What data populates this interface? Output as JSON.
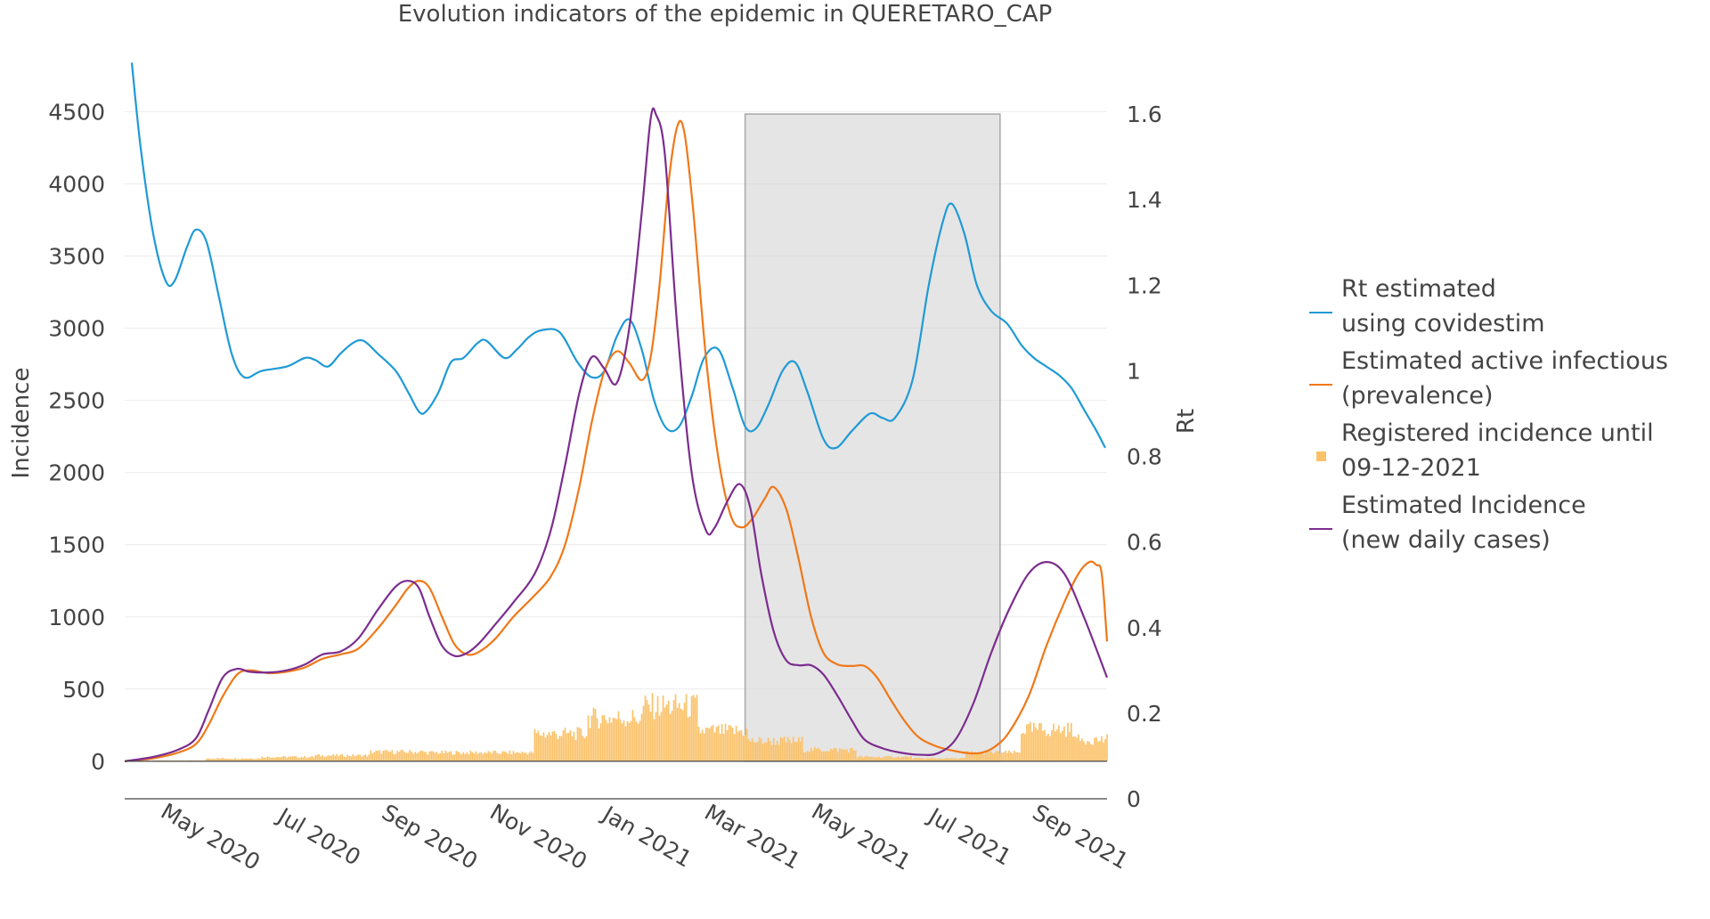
{
  "chart_data": {
    "type": "line",
    "title": "Evolution indicators of the epidemic in QUERETARO_CAP",
    "xlabel": "",
    "ylabel": "Incidence",
    "y2label": "Rt",
    "x_range": [
      "2020-03-16",
      "2021-09-18"
    ],
    "ylim": [
      -260,
      4780
    ],
    "y2lim": [
      0,
      1.7
    ],
    "y_ticks": [
      0,
      500,
      1000,
      1500,
      2000,
      2500,
      3000,
      3500,
      4000,
      4500
    ],
    "y2_ticks": [
      0,
      0.2,
      0.4,
      0.6,
      0.8,
      1,
      1.2,
      1.4,
      1.6
    ],
    "y2_tick_labels": [
      "0",
      "0.2",
      "0.4",
      "0.6",
      "0.8",
      "1",
      "1.2",
      "1.4",
      "1.6"
    ],
    "x_ticks": [
      "2020-05-01",
      "2020-07-01",
      "2020-09-01",
      "2020-11-01",
      "2021-01-01",
      "2021-03-01",
      "2021-05-01",
      "2021-07-01",
      "2021-09-01"
    ],
    "x_tick_labels": [
      "May 2020",
      "Jul 2020",
      "Sep 2020",
      "Nov 2020",
      "Jan 2021",
      "Mar 2021",
      "May 2021",
      "Jul 2021",
      "Sep 2021"
    ],
    "grid": true,
    "legend_position": "right",
    "shaded_region": {
      "x_start": "2021-02-27",
      "x_end": "2021-07-20",
      "y2_top": 1.6,
      "color": "#d3d3d3"
    },
    "series": [
      {
        "name": "Rt estimated\nusing covidestim",
        "type": "line",
        "axis": "y2",
        "color": "#1f9ad6",
        "points": [
          [
            "2020-03-20",
            1.72
          ],
          [
            "2020-03-25",
            1.52
          ],
          [
            "2020-04-01",
            1.32
          ],
          [
            "2020-04-08",
            1.21
          ],
          [
            "2020-04-13",
            1.21
          ],
          [
            "2020-04-20",
            1.29
          ],
          [
            "2020-04-25",
            1.33
          ],
          [
            "2020-05-01",
            1.3
          ],
          [
            "2020-05-08",
            1.17
          ],
          [
            "2020-05-15",
            1.04
          ],
          [
            "2020-05-22",
            0.985
          ],
          [
            "2020-06-01",
            1.0
          ],
          [
            "2020-06-15",
            1.01
          ],
          [
            "2020-06-25",
            1.03
          ],
          [
            "2020-07-01",
            1.025
          ],
          [
            "2020-07-08",
            1.01
          ],
          [
            "2020-07-15",
            1.04
          ],
          [
            "2020-07-22",
            1.065
          ],
          [
            "2020-07-28",
            1.07
          ],
          [
            "2020-08-05",
            1.04
          ],
          [
            "2020-08-15",
            1.0
          ],
          [
            "2020-08-22",
            0.95
          ],
          [
            "2020-08-28",
            0.905
          ],
          [
            "2020-09-01",
            0.905
          ],
          [
            "2020-09-08",
            0.95
          ],
          [
            "2020-09-15",
            1.02
          ],
          [
            "2020-09-22",
            1.03
          ],
          [
            "2020-09-30",
            1.065
          ],
          [
            "2020-10-05",
            1.07
          ],
          [
            "2020-10-15",
            1.03
          ],
          [
            "2020-10-22",
            1.05
          ],
          [
            "2020-10-29",
            1.08
          ],
          [
            "2020-11-05",
            1.095
          ],
          [
            "2020-11-15",
            1.09
          ],
          [
            "2020-11-25",
            1.02
          ],
          [
            "2020-12-03",
            0.985
          ],
          [
            "2020-12-10",
            1.0
          ],
          [
            "2020-12-17",
            1.08
          ],
          [
            "2020-12-24",
            1.12
          ],
          [
            "2020-12-31",
            1.05
          ],
          [
            "2021-01-07",
            0.93
          ],
          [
            "2021-01-14",
            0.865
          ],
          [
            "2021-01-21",
            0.87
          ],
          [
            "2021-01-28",
            0.94
          ],
          [
            "2021-02-04",
            1.03
          ],
          [
            "2021-02-12",
            1.05
          ],
          [
            "2021-02-20",
            0.96
          ],
          [
            "2021-02-27",
            0.87
          ],
          [
            "2021-03-05",
            0.865
          ],
          [
            "2021-03-12",
            0.92
          ],
          [
            "2021-03-20",
            1.0
          ],
          [
            "2021-03-27",
            1.02
          ],
          [
            "2021-04-03",
            0.95
          ],
          [
            "2021-04-12",
            0.84
          ],
          [
            "2021-04-19",
            0.82
          ],
          [
            "2021-04-28",
            0.86
          ],
          [
            "2021-05-08",
            0.9
          ],
          [
            "2021-05-15",
            0.89
          ],
          [
            "2021-05-22",
            0.89
          ],
          [
            "2021-06-01",
            0.98
          ],
          [
            "2021-06-10",
            1.2
          ],
          [
            "2021-06-18",
            1.35
          ],
          [
            "2021-06-23",
            1.39
          ],
          [
            "2021-06-30",
            1.32
          ],
          [
            "2021-07-07",
            1.2
          ],
          [
            "2021-07-15",
            1.14
          ],
          [
            "2021-07-24",
            1.11
          ],
          [
            "2021-08-01",
            1.06
          ],
          [
            "2021-08-08",
            1.03
          ],
          [
            "2021-08-15",
            1.01
          ],
          [
            "2021-08-22",
            0.99
          ],
          [
            "2021-08-29",
            0.96
          ],
          [
            "2021-09-05",
            0.91
          ],
          [
            "2021-09-12",
            0.86
          ],
          [
            "2021-09-17",
            0.82
          ]
        ]
      },
      {
        "name": "Estimated active infectious\n(prevalence)",
        "type": "line",
        "axis": "y",
        "color": "#f07818",
        "points": [
          [
            "2020-03-16",
            0
          ],
          [
            "2020-04-01",
            20
          ],
          [
            "2020-04-15",
            60
          ],
          [
            "2020-04-25",
            120
          ],
          [
            "2020-05-02",
            250
          ],
          [
            "2020-05-10",
            450
          ],
          [
            "2020-05-18",
            600
          ],
          [
            "2020-05-25",
            630
          ],
          [
            "2020-06-05",
            610
          ],
          [
            "2020-06-15",
            620
          ],
          [
            "2020-06-25",
            650
          ],
          [
            "2020-07-05",
            710
          ],
          [
            "2020-07-15",
            740
          ],
          [
            "2020-07-25",
            780
          ],
          [
            "2020-08-05",
            920
          ],
          [
            "2020-08-15",
            1080
          ],
          [
            "2020-08-22",
            1200
          ],
          [
            "2020-08-28",
            1250
          ],
          [
            "2020-09-03",
            1200
          ],
          [
            "2020-09-10",
            1000
          ],
          [
            "2020-09-17",
            810
          ],
          [
            "2020-09-24",
            740
          ],
          [
            "2020-10-01",
            760
          ],
          [
            "2020-10-10",
            850
          ],
          [
            "2020-10-20",
            1000
          ],
          [
            "2020-11-01",
            1150
          ],
          [
            "2020-11-10",
            1280
          ],
          [
            "2020-11-18",
            1500
          ],
          [
            "2020-11-26",
            1900
          ],
          [
            "2020-12-03",
            2350
          ],
          [
            "2020-12-10",
            2700
          ],
          [
            "2020-12-17",
            2840
          ],
          [
            "2020-12-24",
            2760
          ],
          [
            "2020-12-31",
            2640
          ],
          [
            "2021-01-05",
            2800
          ],
          [
            "2021-01-10",
            3300
          ],
          [
            "2021-01-15",
            4000
          ],
          [
            "2021-01-20",
            4400
          ],
          [
            "2021-01-24",
            4350
          ],
          [
            "2021-01-29",
            3800
          ],
          [
            "2021-02-05",
            2800
          ],
          [
            "2021-02-12",
            2100
          ],
          [
            "2021-02-19",
            1700
          ],
          [
            "2021-02-25",
            1620
          ],
          [
            "2021-03-03",
            1680
          ],
          [
            "2021-03-10",
            1820
          ],
          [
            "2021-03-15",
            1900
          ],
          [
            "2021-03-22",
            1750
          ],
          [
            "2021-03-29",
            1400
          ],
          [
            "2021-04-05",
            1000
          ],
          [
            "2021-04-12",
            750
          ],
          [
            "2021-04-20",
            670
          ],
          [
            "2021-04-28",
            660
          ],
          [
            "2021-05-05",
            660
          ],
          [
            "2021-05-12",
            580
          ],
          [
            "2021-05-20",
            420
          ],
          [
            "2021-05-28",
            270
          ],
          [
            "2021-06-05",
            160
          ],
          [
            "2021-06-15",
            100
          ],
          [
            "2021-06-25",
            70
          ],
          [
            "2021-07-03",
            55
          ],
          [
            "2021-07-10",
            60
          ],
          [
            "2021-07-17",
            100
          ],
          [
            "2021-07-25",
            200
          ],
          [
            "2021-08-05",
            450
          ],
          [
            "2021-08-15",
            800
          ],
          [
            "2021-08-25",
            1100
          ],
          [
            "2021-09-02",
            1300
          ],
          [
            "2021-09-08",
            1380
          ],
          [
            "2021-09-12",
            1360
          ],
          [
            "2021-09-15",
            1300
          ],
          [
            "2021-09-18",
            830
          ]
        ]
      },
      {
        "name": "Registered incidence until\n09-12-2021",
        "type": "bar",
        "axis": "y",
        "color": "#fbc26a",
        "monthly_level": [
          [
            "2020-03",
            2
          ],
          [
            "2020-04",
            5
          ],
          [
            "2020-05",
            20
          ],
          [
            "2020-06",
            30
          ],
          [
            "2020-07",
            40
          ],
          [
            "2020-08",
            65
          ],
          [
            "2020-09",
            60
          ],
          [
            "2020-10",
            60
          ],
          [
            "2020-11",
            190
          ],
          [
            "2020-12",
            300
          ],
          [
            "2021-01",
            380
          ],
          [
            "2021-02",
            210
          ],
          [
            "2021-03",
            140
          ],
          [
            "2021-04",
            80
          ],
          [
            "2021-05",
            30
          ],
          [
            "2021-06",
            20
          ],
          [
            "2021-07",
            60
          ],
          [
            "2021-08",
            220
          ],
          [
            "2021-09",
            150
          ]
        ]
      },
      {
        "name": "Estimated Incidence\n(new daily cases)",
        "type": "line",
        "axis": "y",
        "color": "#7b2d8e",
        "points": [
          [
            "2020-03-16",
            0
          ],
          [
            "2020-04-01",
            30
          ],
          [
            "2020-04-15",
            80
          ],
          [
            "2020-04-25",
            160
          ],
          [
            "2020-05-02",
            350
          ],
          [
            "2020-05-10",
            580
          ],
          [
            "2020-05-18",
            640
          ],
          [
            "2020-05-25",
            620
          ],
          [
            "2020-06-05",
            615
          ],
          [
            "2020-06-15",
            630
          ],
          [
            "2020-06-25",
            670
          ],
          [
            "2020-07-05",
            740
          ],
          [
            "2020-07-15",
            760
          ],
          [
            "2020-07-25",
            850
          ],
          [
            "2020-08-05",
            1050
          ],
          [
            "2020-08-15",
            1210
          ],
          [
            "2020-08-22",
            1250
          ],
          [
            "2020-08-28",
            1200
          ],
          [
            "2020-09-03",
            1000
          ],
          [
            "2020-09-10",
            800
          ],
          [
            "2020-09-17",
            730
          ],
          [
            "2020-09-24",
            750
          ],
          [
            "2020-10-01",
            820
          ],
          [
            "2020-10-10",
            950
          ],
          [
            "2020-10-20",
            1100
          ],
          [
            "2020-11-01",
            1300
          ],
          [
            "2020-11-10",
            1600
          ],
          [
            "2020-11-18",
            2050
          ],
          [
            "2020-11-26",
            2550
          ],
          [
            "2020-12-03",
            2800
          ],
          [
            "2020-12-10",
            2720
          ],
          [
            "2020-12-17",
            2620
          ],
          [
            "2020-12-24",
            3000
          ],
          [
            "2020-12-31",
            3800
          ],
          [
            "2021-01-05",
            4450
          ],
          [
            "2021-01-08",
            4480
          ],
          [
            "2021-01-13",
            4200
          ],
          [
            "2021-01-20",
            3000
          ],
          [
            "2021-01-28",
            2000
          ],
          [
            "2021-02-05",
            1600
          ],
          [
            "2021-02-10",
            1620
          ],
          [
            "2021-02-17",
            1800
          ],
          [
            "2021-02-24",
            1920
          ],
          [
            "2021-03-02",
            1750
          ],
          [
            "2021-03-08",
            1300
          ],
          [
            "2021-03-15",
            900
          ],
          [
            "2021-03-22",
            700
          ],
          [
            "2021-03-29",
            665
          ],
          [
            "2021-04-05",
            665
          ],
          [
            "2021-04-12",
            600
          ],
          [
            "2021-04-20",
            450
          ],
          [
            "2021-04-28",
            280
          ],
          [
            "2021-05-05",
            150
          ],
          [
            "2021-05-15",
            90
          ],
          [
            "2021-05-25",
            60
          ],
          [
            "2021-06-05",
            45
          ],
          [
            "2021-06-15",
            55
          ],
          [
            "2021-06-25",
            150
          ],
          [
            "2021-07-05",
            400
          ],
          [
            "2021-07-15",
            750
          ],
          [
            "2021-07-25",
            1050
          ],
          [
            "2021-08-05",
            1300
          ],
          [
            "2021-08-15",
            1380
          ],
          [
            "2021-08-25",
            1300
          ],
          [
            "2021-09-05",
            1000
          ],
          [
            "2021-09-18",
            580
          ]
        ]
      }
    ]
  }
}
